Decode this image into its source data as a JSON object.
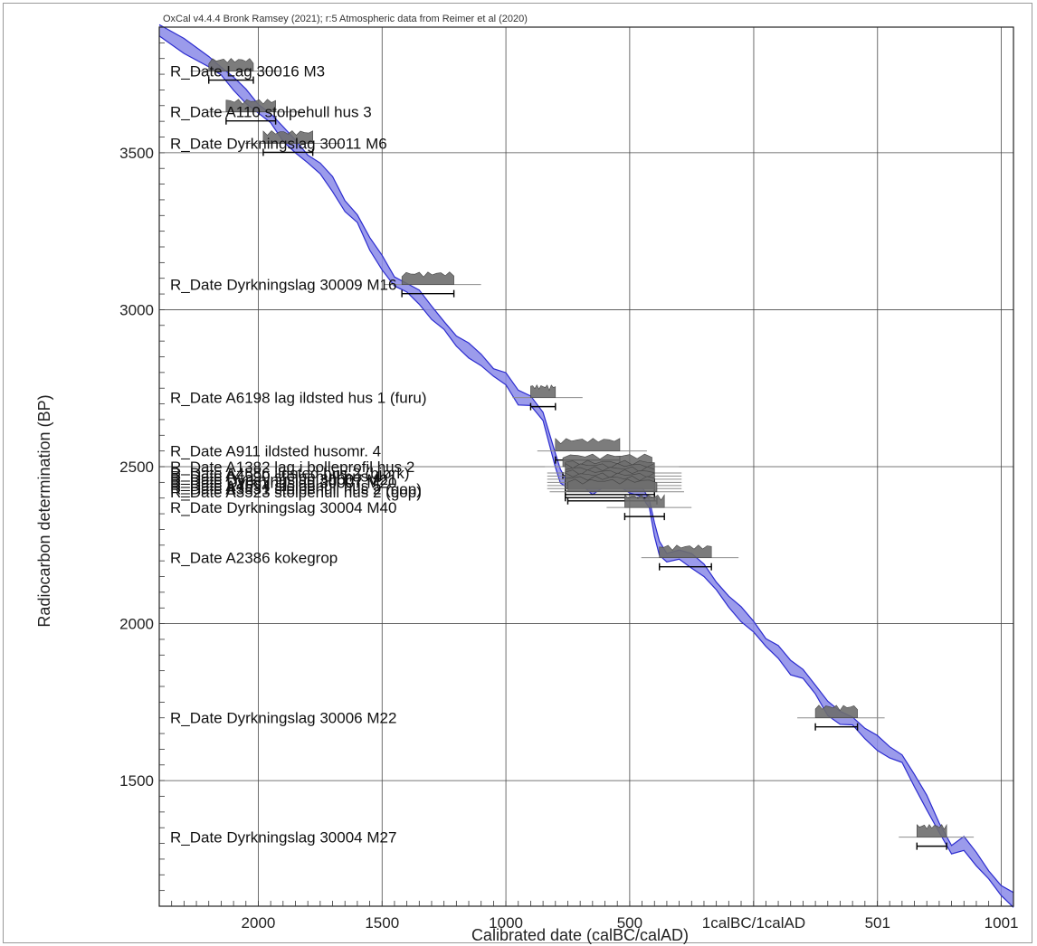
{
  "chart_data": {
    "type": "line",
    "title": "OxCal v4.4.4 Bronk Ramsey (2021); r:5 Atmospheric data from Reimer et al (2020)",
    "xlabel": "Calibrated date (calBC/calAD)",
    "ylabel": "Radiocarbon determination (BP)",
    "x_range_calbc_calad": [
      -2400,
      1050
    ],
    "y_range_bp": [
      1100,
      3900
    ],
    "x_ticks": [
      {
        "value": -2000,
        "label": "2000"
      },
      {
        "value": -1500,
        "label": "1500"
      },
      {
        "value": -1000,
        "label": "1000"
      },
      {
        "value": -500,
        "label": "500"
      },
      {
        "value": 1,
        "label": "1calBC/1calAD"
      },
      {
        "value": 501,
        "label": "501"
      },
      {
        "value": 1001,
        "label": "1001"
      }
    ],
    "y_ticks": [
      {
        "value": 1500,
        "label": "1500"
      },
      {
        "value": 2000,
        "label": "2000"
      },
      {
        "value": 2500,
        "label": "2500"
      },
      {
        "value": 3000,
        "label": "3000"
      },
      {
        "value": 3500,
        "label": "3500"
      }
    ],
    "grid": true,
    "curve_color": "#2b2bcf",
    "band_color": "#8a8ae8",
    "calibration_curve": {
      "name": "IntCal20",
      "x": [
        -2400,
        -2300,
        -2200,
        -2150,
        -2100,
        -2050,
        -2000,
        -1950,
        -1900,
        -1850,
        -1800,
        -1750,
        -1700,
        -1650,
        -1600,
        -1550,
        -1500,
        -1450,
        -1400,
        -1350,
        -1300,
        -1250,
        -1200,
        -1150,
        -1100,
        -1050,
        -1000,
        -950,
        -900,
        -850,
        -800,
        -780,
        -760,
        -740,
        -700,
        -650,
        -600,
        -550,
        -500,
        -450,
        -420,
        -400,
        -380,
        -350,
        -300,
        -250,
        -200,
        -150,
        -100,
        -50,
        1,
        50,
        100,
        150,
        200,
        250,
        300,
        350,
        400,
        450,
        500,
        550,
        600,
        650,
        700,
        750,
        800,
        850,
        900,
        950,
        1000,
        1050
      ],
      "y": [
        3890,
        3840,
        3790,
        3760,
        3720,
        3680,
        3640,
        3610,
        3560,
        3520,
        3480,
        3450,
        3400,
        3330,
        3290,
        3210,
        3150,
        3090,
        3070,
        3040,
        2990,
        2950,
        2900,
        2870,
        2840,
        2800,
        2780,
        2720,
        2710,
        2660,
        2520,
        2470,
        2450,
        2460,
        2470,
        2430,
        2450,
        2460,
        2440,
        2420,
        2380,
        2300,
        2240,
        2210,
        2220,
        2200,
        2170,
        2120,
        2070,
        2030,
        1990,
        1940,
        1910,
        1860,
        1840,
        1790,
        1730,
        1700,
        1690,
        1650,
        1620,
        1590,
        1570,
        1500,
        1430,
        1350,
        1280,
        1300,
        1250,
        1200,
        1150,
        1120
      ]
    },
    "samples": [
      {
        "label": "R_Date Lag 30016 M3",
        "cal_from": -2200,
        "cal_to": -2020,
        "bp": 3760,
        "sd": 30
      },
      {
        "label": "R_Date A110 stolpehull hus 3",
        "cal_from": -2130,
        "cal_to": -1930,
        "bp": 3630,
        "sd": 30
      },
      {
        "label": "R_Date Dyrkningslag 30011 M6",
        "cal_from": -1980,
        "cal_to": -1780,
        "bp": 3530,
        "sd": 30
      },
      {
        "label": "R_Date Dyrkningslag 30009 M16",
        "cal_from": -1420,
        "cal_to": -1210,
        "bp": 3080,
        "sd": 30
      },
      {
        "label": "R_Date A6198 lag ildsted hus 1 (furu)",
        "cal_from": -900,
        "cal_to": -800,
        "bp": 2720,
        "sd": 30
      },
      {
        "label": "R_Date A911 ildsted husomr. 4",
        "cal_from": -800,
        "cal_to": -540,
        "bp": 2550,
        "sd": 30
      },
      {
        "label": "R_Date A1382 lag i bolleprofil hus 2",
        "cal_from": -770,
        "cal_to": -410,
        "bp": 2500,
        "sd": 30
      },
      {
        "label": "R_Date A4586 ildsted hus 2 (bjørk)",
        "cal_from": -760,
        "cal_to": -400,
        "bp": 2480,
        "sd": 30
      },
      {
        "label": "R_Date A4590 stolpehull hus 4",
        "cal_from": -760,
        "cal_to": -400,
        "bp": 2470,
        "sd": 30
      },
      {
        "label": "R_Date Dyrkningslag 30007 M21",
        "cal_from": -760,
        "cal_to": -400,
        "bp": 2460,
        "sd": 30
      },
      {
        "label": "R_Date Dyrkningslag 30007 M20",
        "cal_from": -760,
        "cal_to": -400,
        "bp": 2450,
        "sd": 30
      },
      {
        "label": "R_Date A4594 stolpehull hus 5",
        "cal_from": -760,
        "cal_to": -400,
        "bp": 2440,
        "sd": 30
      },
      {
        "label": "R_Date A3531 stolpehull hus 2 (gop)",
        "cal_from": -760,
        "cal_to": -400,
        "bp": 2430,
        "sd": 30
      },
      {
        "label": "R_Date A3523 stolpehull hus 2 (gop)",
        "cal_from": -750,
        "cal_to": -390,
        "bp": 2420,
        "sd": 30
      },
      {
        "label": "R_Date Dyrkningslag 30004 M40",
        "cal_from": -520,
        "cal_to": -360,
        "bp": 2370,
        "sd": 30
      },
      {
        "label": "R_Date A2386 kokegrop",
        "cal_from": -380,
        "cal_to": -170,
        "bp": 2210,
        "sd": 30
      },
      {
        "label": "R_Date Dyrkningslag 30006 M22",
        "cal_from": 250,
        "cal_to": 420,
        "bp": 1700,
        "sd": 30
      },
      {
        "label": "R_Date Dyrkningslag 30004 M27",
        "cal_from": 660,
        "cal_to": 780,
        "bp": 1320,
        "sd": 30
      }
    ]
  }
}
